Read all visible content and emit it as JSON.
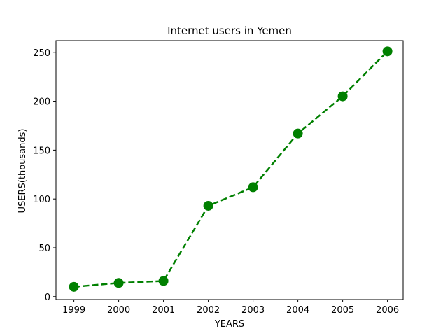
{
  "chart_data": {
    "type": "line",
    "title": "Internet users in Yemen",
    "xlabel": "YEARS",
    "ylabel": "USERS(thousands)",
    "x": [
      1999,
      2000,
      2001,
      2002,
      2003,
      2004,
      2005,
      2006
    ],
    "x_ticks": [
      "1999",
      "2000",
      "2001",
      "2002",
      "2003",
      "2004",
      "2005",
      "2006"
    ],
    "y_ticks": [
      "0",
      "50",
      "100",
      "150",
      "200",
      "250"
    ],
    "ylim": [
      -3,
      262
    ],
    "xlim": [
      1998.6,
      2006.35
    ],
    "grid": false,
    "series": [
      {
        "values": [
          10,
          14,
          16,
          93,
          112,
          167,
          205,
          251
        ],
        "color": "#008000",
        "linestyle": "dashed",
        "marker": "circle"
      }
    ]
  }
}
